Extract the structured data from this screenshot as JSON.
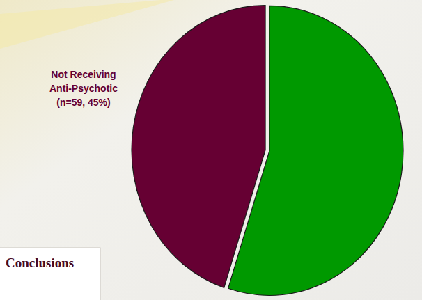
{
  "chart_data": {
    "type": "pie",
    "values": [
      55,
      45
    ],
    "labels": [
      null,
      "Not Receiving Anti-Psychotic (n=59, 45%)"
    ],
    "colors": [
      "#009900",
      "#660033"
    ],
    "annotations": [
      "Conclusions"
    ]
  }
}
